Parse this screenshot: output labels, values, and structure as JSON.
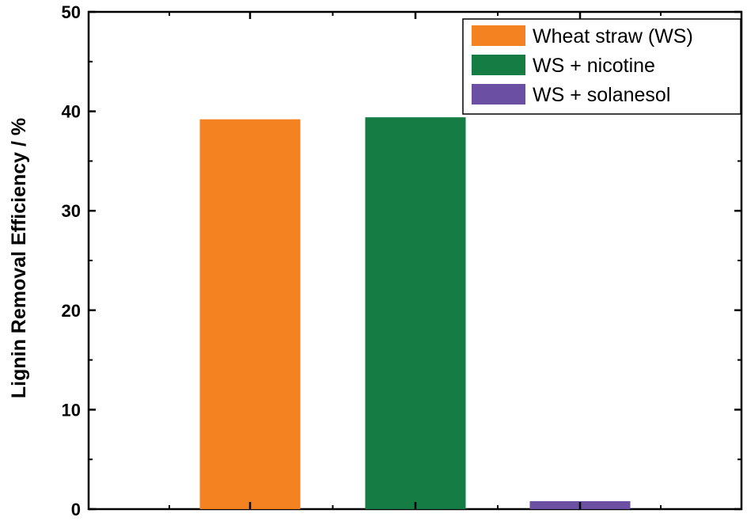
{
  "chart_data": {
    "type": "bar",
    "title": "",
    "xlabel": "",
    "ylabel": "Lignin Removal Efficiency / %",
    "ylim": [
      0,
      50
    ],
    "yticks": [
      0,
      10,
      20,
      30,
      40,
      50
    ],
    "y_tick_labels": [
      "0",
      "10",
      "20",
      "30",
      "40",
      "50"
    ],
    "grid": false,
    "legend_position": "top-right",
    "categories": [
      "Wheat straw (WS)",
      "WS + nicotine",
      "WS + solanesol"
    ],
    "values": [
      39.2,
      39.4,
      0.8
    ],
    "colors": [
      "#f58220",
      "#157c43",
      "#6a4fa3"
    ]
  }
}
